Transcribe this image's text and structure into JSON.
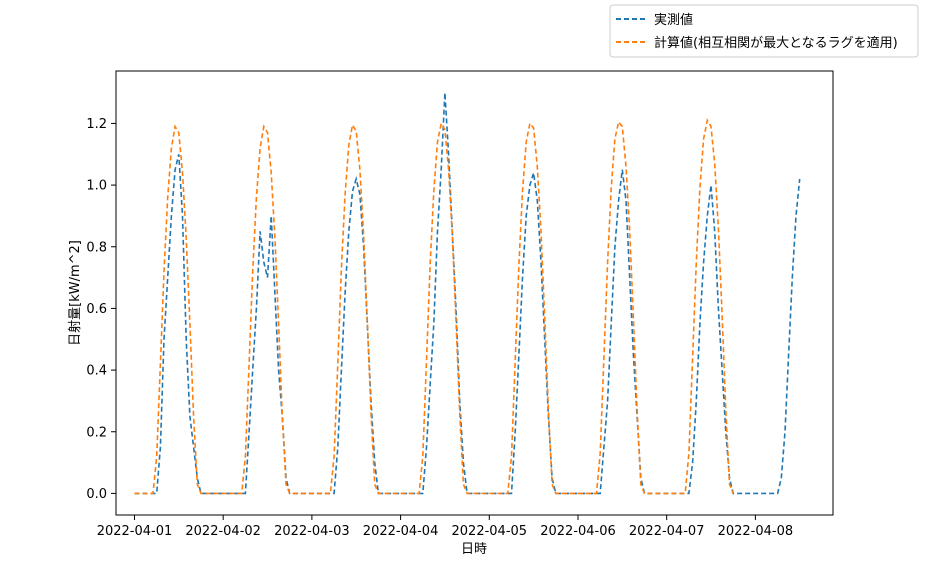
{
  "chart_data": {
    "type": "line",
    "title": "",
    "xlabel": "日時",
    "ylabel": "日射量[kW/m^2]",
    "x_ticks": [
      "2022-04-01",
      "2022-04-02",
      "2022-04-03",
      "2022-04-04",
      "2022-04-05",
      "2022-04-06",
      "2022-04-07",
      "2022-04-08"
    ],
    "y_ticks": [
      "0.0",
      "0.2",
      "0.4",
      "0.6",
      "0.8",
      "1.0",
      "1.2"
    ],
    "xlim": [
      "2022-03-31T19:00",
      "2022-04-08T21:00"
    ],
    "ylim": [
      -0.07,
      1.37
    ],
    "grid": false,
    "legend_position": "above-right, outside plot",
    "colors": {
      "measured": "#1f77b4",
      "calculated": "#ff7f0e"
    },
    "series": [
      {
        "name": "実測値",
        "key": "measured",
        "style": "dashed",
        "points": [
          [
            "2022-04-01T00:00",
            0.0
          ],
          [
            "2022-04-01T06:00",
            0.0
          ],
          [
            "2022-04-01T07:00",
            0.15
          ],
          [
            "2022-04-01T08:00",
            0.5
          ],
          [
            "2022-04-01T09:00",
            0.7
          ],
          [
            "2022-04-01T10:00",
            0.9
          ],
          [
            "2022-04-01T11:00",
            1.05
          ],
          [
            "2022-04-01T12:00",
            1.1
          ],
          [
            "2022-04-01T13:00",
            0.9
          ],
          [
            "2022-04-01T14:00",
            0.5
          ],
          [
            "2022-04-01T15:00",
            0.25
          ],
          [
            "2022-04-01T16:00",
            0.15
          ],
          [
            "2022-04-01T17:00",
            0.05
          ],
          [
            "2022-04-01T18:00",
            0.0
          ],
          [
            "2022-04-02T06:00",
            0.0
          ],
          [
            "2022-04-02T07:00",
            0.2
          ],
          [
            "2022-04-02T08:00",
            0.4
          ],
          [
            "2022-04-02T09:00",
            0.6
          ],
          [
            "2022-04-02T10:00",
            0.85
          ],
          [
            "2022-04-02T11:00",
            0.75
          ],
          [
            "2022-04-02T12:00",
            0.7
          ],
          [
            "2022-04-02T13:00",
            0.9
          ],
          [
            "2022-04-02T14:00",
            0.65
          ],
          [
            "2022-04-02T15:00",
            0.4
          ],
          [
            "2022-04-02T16:00",
            0.25
          ],
          [
            "2022-04-02T17:00",
            0.05
          ],
          [
            "2022-04-02T18:00",
            0.0
          ],
          [
            "2022-04-03T06:00",
            0.0
          ],
          [
            "2022-04-03T07:00",
            0.15
          ],
          [
            "2022-04-03T08:00",
            0.4
          ],
          [
            "2022-04-03T09:00",
            0.65
          ],
          [
            "2022-04-03T10:00",
            0.85
          ],
          [
            "2022-04-03T11:00",
            0.98
          ],
          [
            "2022-04-03T12:00",
            1.02
          ],
          [
            "2022-04-03T13:00",
            0.97
          ],
          [
            "2022-04-03T14:00",
            0.8
          ],
          [
            "2022-04-03T15:00",
            0.55
          ],
          [
            "2022-04-03T16:00",
            0.3
          ],
          [
            "2022-04-03T17:00",
            0.1
          ],
          [
            "2022-04-03T18:00",
            0.0
          ],
          [
            "2022-04-04T06:00",
            0.0
          ],
          [
            "2022-04-04T07:00",
            0.15
          ],
          [
            "2022-04-04T08:00",
            0.35
          ],
          [
            "2022-04-04T09:00",
            0.55
          ],
          [
            "2022-04-04T10:00",
            0.85
          ],
          [
            "2022-04-04T11:00",
            1.05
          ],
          [
            "2022-04-04T12:00",
            1.3
          ],
          [
            "2022-04-04T13:00",
            1.1
          ],
          [
            "2022-04-04T14:00",
            0.85
          ],
          [
            "2022-04-04T15:00",
            0.6
          ],
          [
            "2022-04-04T16:00",
            0.3
          ],
          [
            "2022-04-04T17:00",
            0.1
          ],
          [
            "2022-04-04T18:00",
            0.0
          ],
          [
            "2022-04-05T06:00",
            0.0
          ],
          [
            "2022-04-05T07:00",
            0.2
          ],
          [
            "2022-04-05T08:00",
            0.45
          ],
          [
            "2022-04-05T09:00",
            0.7
          ],
          [
            "2022-04-05T10:00",
            0.9
          ],
          [
            "2022-04-05T11:00",
            1.0
          ],
          [
            "2022-04-05T12:00",
            1.04
          ],
          [
            "2022-04-05T13:00",
            0.95
          ],
          [
            "2022-04-05T14:00",
            0.75
          ],
          [
            "2022-04-05T15:00",
            0.5
          ],
          [
            "2022-04-05T16:00",
            0.25
          ],
          [
            "2022-04-05T17:00",
            0.05
          ],
          [
            "2022-04-05T18:00",
            0.0
          ],
          [
            "2022-04-06T06:00",
            0.0
          ],
          [
            "2022-04-06T07:00",
            0.15
          ],
          [
            "2022-04-06T08:00",
            0.3
          ],
          [
            "2022-04-06T09:00",
            0.55
          ],
          [
            "2022-04-06T10:00",
            0.8
          ],
          [
            "2022-04-06T11:00",
            0.95
          ],
          [
            "2022-04-06T12:00",
            1.05
          ],
          [
            "2022-04-06T13:00",
            0.95
          ],
          [
            "2022-04-06T14:00",
            0.7
          ],
          [
            "2022-04-06T15:00",
            0.45
          ],
          [
            "2022-04-06T16:00",
            0.25
          ],
          [
            "2022-04-06T17:00",
            0.05
          ],
          [
            "2022-04-06T18:00",
            0.0
          ],
          [
            "2022-04-07T06:00",
            0.0
          ],
          [
            "2022-04-07T07:00",
            0.1
          ],
          [
            "2022-04-07T08:00",
            0.3
          ],
          [
            "2022-04-07T09:00",
            0.55
          ],
          [
            "2022-04-07T10:00",
            0.75
          ],
          [
            "2022-04-07T11:00",
            0.9
          ],
          [
            "2022-04-07T12:00",
            1.0
          ],
          [
            "2022-04-07T13:00",
            0.85
          ],
          [
            "2022-04-07T14:00",
            0.6
          ],
          [
            "2022-04-07T15:00",
            0.4
          ],
          [
            "2022-04-07T16:00",
            0.2
          ],
          [
            "2022-04-07T17:00",
            0.05
          ],
          [
            "2022-04-07T18:00",
            0.0
          ],
          [
            "2022-04-08T06:00",
            0.0
          ],
          [
            "2022-04-08T07:00",
            0.05
          ],
          [
            "2022-04-08T08:00",
            0.2
          ],
          [
            "2022-04-08T09:00",
            0.45
          ],
          [
            "2022-04-08T10:00",
            0.7
          ],
          [
            "2022-04-08T11:00",
            0.9
          ],
          [
            "2022-04-08T12:00",
            1.02
          ]
        ]
      },
      {
        "name": "計算値(相互相関が最大となるラグを適用)",
        "key": "calculated",
        "style": "dashed",
        "points": [
          [
            "2022-04-01T00:00",
            0.0
          ],
          [
            "2022-04-01T05:00",
            0.0
          ],
          [
            "2022-04-01T06:00",
            0.12
          ],
          [
            "2022-04-01T07:00",
            0.42
          ],
          [
            "2022-04-01T08:00",
            0.72
          ],
          [
            "2022-04-01T09:00",
            0.96
          ],
          [
            "2022-04-01T10:00",
            1.12
          ],
          [
            "2022-04-01T11:00",
            1.19
          ],
          [
            "2022-04-01T12:00",
            1.17
          ],
          [
            "2022-04-01T13:00",
            1.04
          ],
          [
            "2022-04-01T14:00",
            0.83
          ],
          [
            "2022-04-01T15:00",
            0.55
          ],
          [
            "2022-04-01T16:00",
            0.25
          ],
          [
            "2022-04-01T17:00",
            0.03
          ],
          [
            "2022-04-01T18:00",
            0.0
          ],
          [
            "2022-04-02T05:00",
            0.0
          ],
          [
            "2022-04-02T06:00",
            0.12
          ],
          [
            "2022-04-02T07:00",
            0.42
          ],
          [
            "2022-04-02T08:00",
            0.72
          ],
          [
            "2022-04-02T09:00",
            0.96
          ],
          [
            "2022-04-02T10:00",
            1.12
          ],
          [
            "2022-04-02T11:00",
            1.19
          ],
          [
            "2022-04-02T12:00",
            1.17
          ],
          [
            "2022-04-02T13:00",
            1.04
          ],
          [
            "2022-04-02T14:00",
            0.83
          ],
          [
            "2022-04-02T15:00",
            0.55
          ],
          [
            "2022-04-02T16:00",
            0.25
          ],
          [
            "2022-04-02T17:00",
            0.03
          ],
          [
            "2022-04-02T18:00",
            0.0
          ],
          [
            "2022-04-03T05:00",
            0.0
          ],
          [
            "2022-04-03T06:00",
            0.12
          ],
          [
            "2022-04-03T07:00",
            0.42
          ],
          [
            "2022-04-03T08:00",
            0.73
          ],
          [
            "2022-04-03T09:00",
            0.97
          ],
          [
            "2022-04-03T10:00",
            1.13
          ],
          [
            "2022-04-03T11:00",
            1.195
          ],
          [
            "2022-04-03T12:00",
            1.175
          ],
          [
            "2022-04-03T13:00",
            1.05
          ],
          [
            "2022-04-03T14:00",
            0.84
          ],
          [
            "2022-04-03T15:00",
            0.56
          ],
          [
            "2022-04-03T16:00",
            0.26
          ],
          [
            "2022-04-03T17:00",
            0.03
          ],
          [
            "2022-04-03T18:00",
            0.0
          ],
          [
            "2022-04-04T05:00",
            0.0
          ],
          [
            "2022-04-04T06:00",
            0.12
          ],
          [
            "2022-04-04T07:00",
            0.43
          ],
          [
            "2022-04-04T08:00",
            0.74
          ],
          [
            "2022-04-04T09:00",
            0.98
          ],
          [
            "2022-04-04T10:00",
            1.14
          ],
          [
            "2022-04-04T11:00",
            1.2
          ],
          [
            "2022-04-04T12:00",
            1.18
          ],
          [
            "2022-04-04T13:00",
            1.05
          ],
          [
            "2022-04-04T14:00",
            0.84
          ],
          [
            "2022-04-04T15:00",
            0.56
          ],
          [
            "2022-04-04T16:00",
            0.26
          ],
          [
            "2022-04-04T17:00",
            0.03
          ],
          [
            "2022-04-04T18:00",
            0.0
          ],
          [
            "2022-04-05T05:00",
            0.0
          ],
          [
            "2022-04-05T06:00",
            0.12
          ],
          [
            "2022-04-05T07:00",
            0.43
          ],
          [
            "2022-04-05T08:00",
            0.74
          ],
          [
            "2022-04-05T09:00",
            0.98
          ],
          [
            "2022-04-05T10:00",
            1.14
          ],
          [
            "2022-04-05T11:00",
            1.2
          ],
          [
            "2022-04-05T12:00",
            1.185
          ],
          [
            "2022-04-05T13:00",
            1.06
          ],
          [
            "2022-04-05T14:00",
            0.85
          ],
          [
            "2022-04-05T15:00",
            0.57
          ],
          [
            "2022-04-05T16:00",
            0.27
          ],
          [
            "2022-04-05T17:00",
            0.03
          ],
          [
            "2022-04-05T18:00",
            0.0
          ],
          [
            "2022-04-06T05:00",
            0.0
          ],
          [
            "2022-04-06T06:00",
            0.13
          ],
          [
            "2022-04-06T07:00",
            0.44
          ],
          [
            "2022-04-06T08:00",
            0.75
          ],
          [
            "2022-04-06T09:00",
            0.99
          ],
          [
            "2022-04-06T10:00",
            1.15
          ],
          [
            "2022-04-06T11:00",
            1.205
          ],
          [
            "2022-04-06T12:00",
            1.19
          ],
          [
            "2022-04-06T13:00",
            1.06
          ],
          [
            "2022-04-06T14:00",
            0.85
          ],
          [
            "2022-04-06T15:00",
            0.57
          ],
          [
            "2022-04-06T16:00",
            0.27
          ],
          [
            "2022-04-06T17:00",
            0.03
          ],
          [
            "2022-04-06T18:00",
            0.0
          ],
          [
            "2022-04-07T05:00",
            0.0
          ],
          [
            "2022-04-07T06:00",
            0.13
          ],
          [
            "2022-04-07T07:00",
            0.44
          ],
          [
            "2022-04-07T08:00",
            0.75
          ],
          [
            "2022-04-07T09:00",
            0.99
          ],
          [
            "2022-04-07T10:00",
            1.15
          ],
          [
            "2022-04-07T11:00",
            1.21
          ],
          [
            "2022-04-07T12:00",
            1.19
          ],
          [
            "2022-04-07T13:00",
            1.07
          ],
          [
            "2022-04-07T14:00",
            0.86
          ],
          [
            "2022-04-07T15:00",
            0.58
          ],
          [
            "2022-04-07T16:00",
            0.27
          ],
          [
            "2022-04-07T17:00",
            0.03
          ],
          [
            "2022-04-07T18:00",
            0.0
          ]
        ]
      }
    ]
  }
}
